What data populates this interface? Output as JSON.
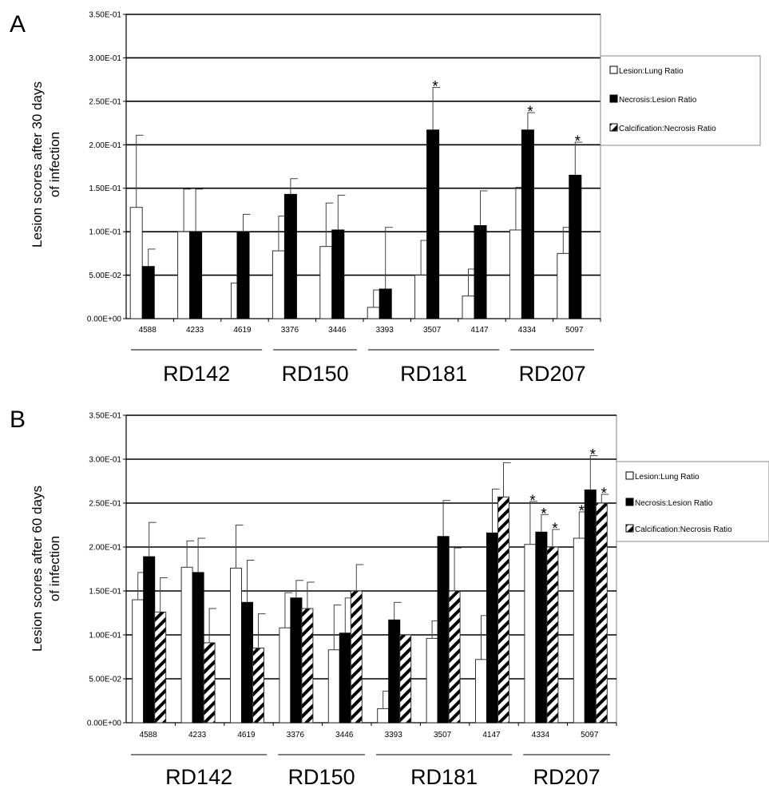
{
  "colors": {
    "lesion_lung": "#ffffff",
    "necrosis_lesion": "#000000",
    "calcification_necrosis": "hatched black/white",
    "axis": "#000000",
    "grid": "#000000"
  },
  "chart_data": [
    {
      "panel": "A",
      "type": "bar",
      "ylabel": [
        "Lesion scores after 30 days",
        "of infection"
      ],
      "ylim": [
        0,
        0.35
      ],
      "yticks": [
        "0.00E+00",
        "5.00E-02",
        "1.00E-01",
        "1.50E-01",
        "2.00E-01",
        "2.50E-01",
        "3.00E-01",
        "3.50E-01"
      ],
      "grid": true,
      "legend_position": "right",
      "categories": [
        "4588",
        "4233",
        "4619",
        "3376",
        "3446",
        "3393",
        "3507",
        "4147",
        "4334",
        "5097"
      ],
      "groups": [
        {
          "label": "RD142",
          "from": 0,
          "to": 2
        },
        {
          "label": "RD150",
          "from": 3,
          "to": 4
        },
        {
          "label": "RD181",
          "from": 5,
          "to": 7
        },
        {
          "label": "RD207",
          "from": 8,
          "to": 9
        }
      ],
      "series": [
        {
          "name": "Lesion:Lung Ratio",
          "style": "white",
          "values": [
            0.128,
            0.1,
            0.0,
            0.078,
            0.083,
            0.013,
            0.05,
            0.026,
            0.102,
            0.075
          ],
          "errors": [
            0.083,
            0.049,
            0.041,
            0.04,
            0.05,
            0.02,
            0.04,
            0.031,
            0.049,
            0.03
          ],
          "stars": [
            false,
            false,
            false,
            false,
            false,
            false,
            false,
            false,
            false,
            false
          ]
        },
        {
          "name": "Necrosis:Lesion Ratio",
          "style": "black",
          "values": [
            0.06,
            0.1,
            0.1,
            0.143,
            0.102,
            0.034,
            0.217,
            0.107,
            0.217,
            0.165
          ],
          "errors": [
            0.02,
            0.049,
            0.02,
            0.018,
            0.04,
            0.071,
            0.049,
            0.04,
            0.02,
            0.038
          ],
          "stars": [
            false,
            false,
            false,
            false,
            false,
            false,
            true,
            false,
            true,
            true
          ]
        },
        {
          "name": "Calcification:Necrosis Ratio",
          "style": "hatched",
          "values": [
            0,
            0,
            0,
            0,
            0,
            0,
            0,
            0,
            0,
            0
          ],
          "errors": [
            0,
            0,
            0,
            0,
            0,
            0,
            0,
            0,
            0,
            0
          ],
          "stars": [
            false,
            false,
            false,
            false,
            false,
            false,
            false,
            false,
            false,
            false
          ]
        }
      ]
    },
    {
      "panel": "B",
      "type": "bar",
      "ylabel": [
        "Lesion scores after 60 days",
        "of infection"
      ],
      "ylim": [
        0,
        0.35
      ],
      "yticks": [
        "0.00E+00",
        "5.00E-02",
        "1.00E-01",
        "1.50E-01",
        "2.00E-01",
        "2.50E-01",
        "3.00E-01",
        "3.50E-01"
      ],
      "grid": true,
      "legend_position": "right",
      "categories": [
        "4588",
        "4233",
        "4619",
        "3376",
        "3446",
        "3393",
        "3507",
        "4147",
        "4334",
        "5097"
      ],
      "groups": [
        {
          "label": "RD142",
          "from": 0,
          "to": 2
        },
        {
          "label": "RD150",
          "from": 3,
          "to": 4
        },
        {
          "label": "RD181",
          "from": 5,
          "to": 7
        },
        {
          "label": "RD207",
          "from": 8,
          "to": 9
        }
      ],
      "series": [
        {
          "name": "Lesion:Lung Ratio",
          "style": "white",
          "values": [
            0.14,
            0.177,
            0.176,
            0.108,
            0.083,
            0.016,
            0.096,
            0.072,
            0.203,
            0.21
          ],
          "errors": [
            0.031,
            0.03,
            0.049,
            0.04,
            0.051,
            0.02,
            0.02,
            0.05,
            0.049,
            0.03
          ],
          "stars": [
            false,
            false,
            false,
            false,
            false,
            false,
            false,
            false,
            true,
            true
          ]
        },
        {
          "name": "Necrosis:Lesion Ratio",
          "style": "black",
          "values": [
            0.189,
            0.171,
            0.137,
            0.142,
            0.102,
            0.117,
            0.212,
            0.216,
            0.217,
            0.265
          ],
          "errors": [
            0.039,
            0.039,
            0.048,
            0.02,
            0.04,
            0.02,
            0.041,
            0.05,
            0.02,
            0.039
          ],
          "stars": [
            false,
            false,
            false,
            false,
            false,
            false,
            false,
            false,
            true,
            true
          ]
        },
        {
          "name": "Calcification:Necrosis Ratio",
          "style": "hatched",
          "values": [
            0.126,
            0.091,
            0.085,
            0.13,
            0.15,
            0.1,
            0.15,
            0.257,
            0.2,
            0.25
          ],
          "errors": [
            0.039,
            0.039,
            0.039,
            0.03,
            0.03,
            0.0,
            0.049,
            0.039,
            0.02,
            0.01
          ],
          "stars": [
            false,
            false,
            false,
            false,
            false,
            false,
            false,
            false,
            true,
            true
          ]
        }
      ]
    }
  ]
}
